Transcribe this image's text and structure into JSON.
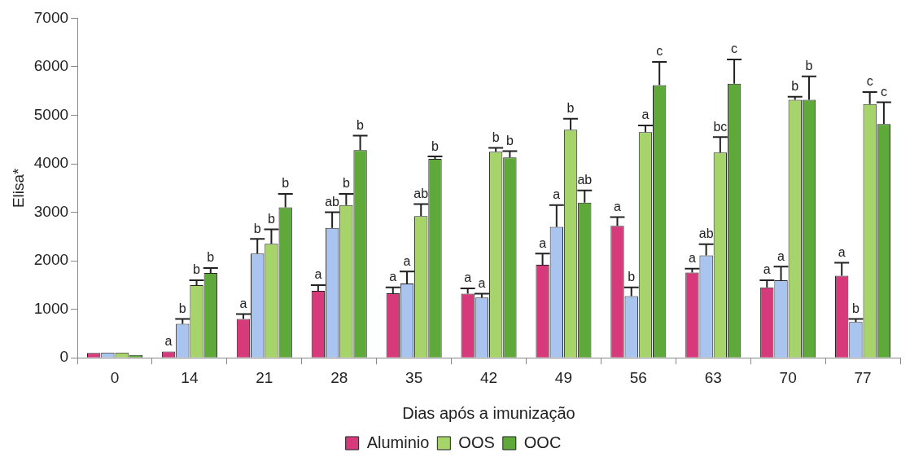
{
  "chart_data": {
    "type": "bar",
    "xlabel": "Dias após a imunização",
    "ylabel": "Elisa*",
    "categories": [
      "0",
      "14",
      "21",
      "28",
      "35",
      "42",
      "49",
      "56",
      "63",
      "70",
      "77"
    ],
    "ylim": [
      0,
      7000
    ],
    "yticks": [
      0,
      1000,
      2000,
      3000,
      4000,
      5000,
      6000,
      7000
    ],
    "grid": false,
    "legend": "bottom",
    "series": [
      {
        "name": "Aluminio",
        "color": "#d63a7a",
        "values": [
          100,
          130,
          800,
          1380,
          1330,
          1320,
          1920,
          2720,
          1760,
          1450,
          1690
        ],
        "errors": [
          null,
          null,
          [
            800,
            900
          ],
          [
            1380,
            1500
          ],
          [
            1330,
            1450
          ],
          [
            1320,
            1430
          ],
          [
            1920,
            2150
          ],
          [
            2720,
            2900
          ],
          [
            1760,
            1840
          ],
          [
            1450,
            1600
          ],
          [
            1690,
            1960
          ]
        ],
        "value_labels": [
          null,
          "a",
          "a",
          "a",
          "a",
          "a",
          "a",
          "a",
          "a",
          "a",
          "a"
        ]
      },
      {
        "color": "#a8c4ef",
        "values": [
          110,
          700,
          2150,
          2680,
          1530,
          1240,
          2700,
          1270,
          2110,
          1600,
          740
        ],
        "errors": [
          null,
          [
            700,
            800
          ],
          [
            2150,
            2450
          ],
          [
            2680,
            3000
          ],
          [
            1530,
            1780
          ],
          [
            1240,
            1320
          ],
          [
            2700,
            3150
          ],
          [
            1270,
            1450
          ],
          [
            2110,
            2340
          ],
          [
            1600,
            1880
          ],
          [
            740,
            800
          ]
        ],
        "value_labels": [
          null,
          "b",
          "b",
          "ab",
          "a",
          "a",
          "a",
          "b",
          "ab",
          "a",
          "b"
        ]
      },
      {
        "name": "OOS",
        "color": "#a6d46a",
        "values": [
          110,
          1500,
          2350,
          3150,
          2920,
          4250,
          4700,
          4650,
          4230,
          5320,
          5230
        ],
        "errors": [
          null,
          [
            1500,
            1600
          ],
          [
            2350,
            2650
          ],
          [
            3150,
            3380
          ],
          [
            2920,
            3170
          ],
          [
            4250,
            4330
          ],
          [
            4700,
            4930
          ],
          [
            4650,
            4790
          ],
          [
            4230,
            4550
          ],
          [
            5320,
            5380
          ],
          [
            5230,
            5480
          ]
        ],
        "value_labels": [
          null,
          "b",
          "b",
          "b",
          "ab",
          "b",
          "b",
          "a",
          "bc",
          "b",
          "c"
        ]
      },
      {
        "name": "OOC",
        "color": "#5fa83a",
        "values": [
          60,
          1750,
          3100,
          4280,
          4100,
          4130,
          3200,
          5620,
          5650,
          5320,
          4820
        ],
        "errors": [
          null,
          [
            1750,
            1850
          ],
          [
            3100,
            3380
          ],
          [
            4280,
            4580
          ],
          [
            4100,
            4150
          ],
          [
            4130,
            4260
          ],
          [
            3200,
            3450
          ],
          [
            5620,
            6100
          ],
          [
            5650,
            6150
          ],
          [
            5320,
            5800
          ],
          [
            4820,
            5270
          ]
        ],
        "value_labels": [
          null,
          "b",
          "b",
          "b",
          "b",
          "b",
          "ab",
          "c",
          "c",
          "b",
          "c"
        ]
      }
    ]
  }
}
